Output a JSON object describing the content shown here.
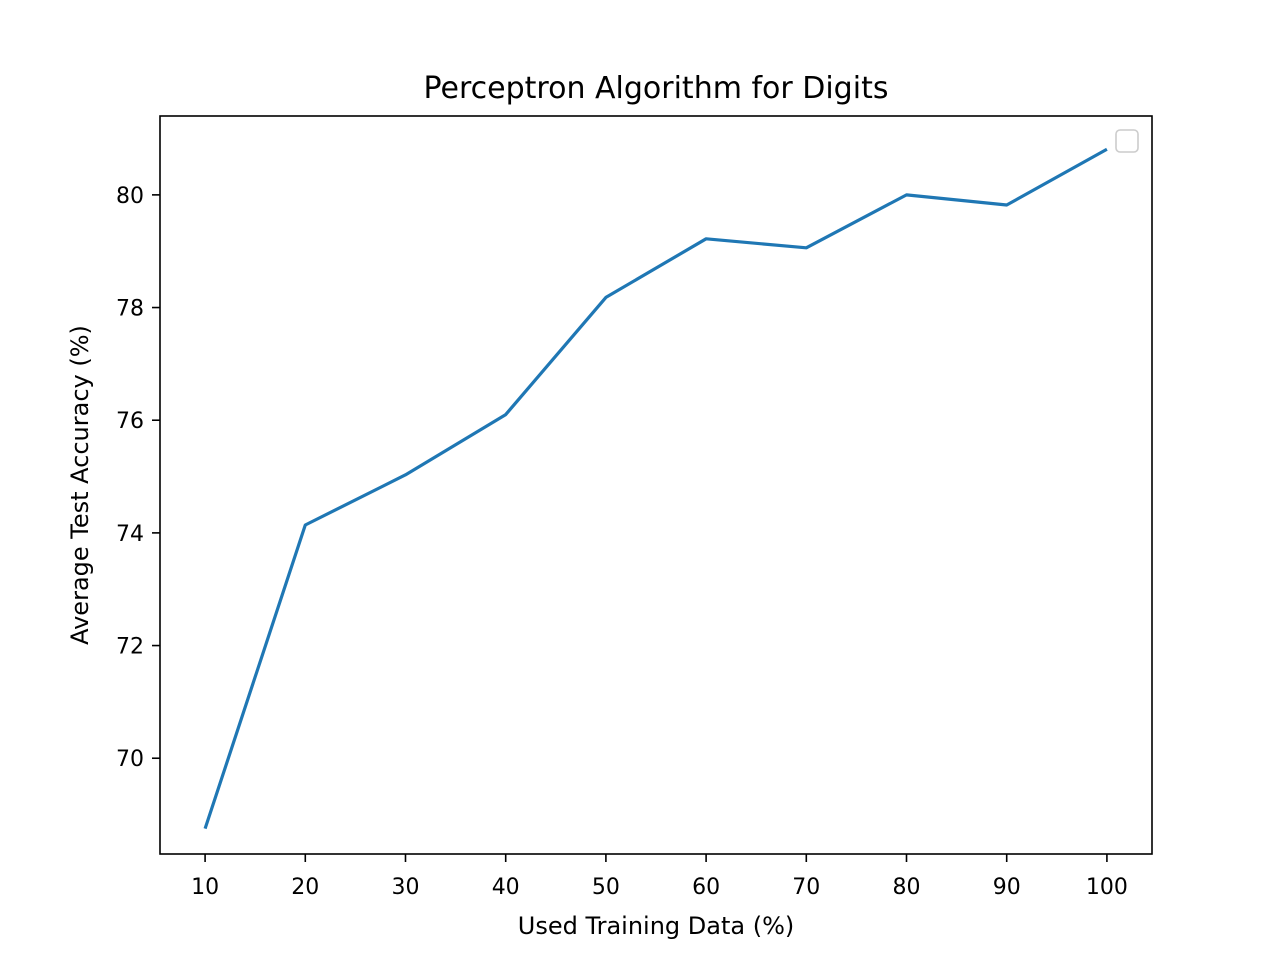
{
  "chart_data": {
    "type": "line",
    "title": "Perceptron Algorithm for Digits",
    "xlabel": "Used Training Data (%)",
    "ylabel": "Average Test Accuracy (%)",
    "xlim": [
      5.5,
      104.5
    ],
    "ylim": [
      68.3,
      81.4
    ],
    "x_ticks": [
      10,
      20,
      30,
      40,
      50,
      60,
      70,
      80,
      90,
      100
    ],
    "y_ticks": [
      70,
      72,
      74,
      76,
      78,
      80
    ],
    "grid": false,
    "legend": {
      "placement": "top-right",
      "entries": []
    },
    "series": [
      {
        "color": "#1f77b4",
        "x": [
          10,
          20,
          30,
          40,
          50,
          60,
          70,
          80,
          90,
          100
        ],
        "y": [
          68.75,
          74.14,
          75.03,
          76.1,
          78.18,
          79.22,
          79.06,
          80.0,
          79.82,
          80.81
        ]
      }
    ]
  }
}
